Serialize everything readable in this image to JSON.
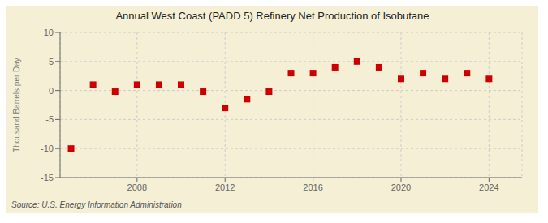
{
  "chart_data": {
    "type": "scatter",
    "title": "Annual West Coast (PADD 5) Refinery Net Production of Isobutane",
    "ylabel": "Thousand Barrels per Day",
    "source": "Source: U.S. Energy Information Administration",
    "x": [
      2005,
      2006,
      2007,
      2008,
      2009,
      2010,
      2011,
      2012,
      2013,
      2014,
      2015,
      2016,
      2017,
      2018,
      2019,
      2020,
      2021,
      2022,
      2023,
      2024
    ],
    "values": [
      -10.0,
      1.0,
      -0.2,
      1.0,
      1.0,
      1.0,
      -0.2,
      -3.0,
      -1.5,
      -0.2,
      3.0,
      3.0,
      4.0,
      5.0,
      4.0,
      2.0,
      3.0,
      2.0,
      3.0,
      2.0
    ],
    "color": "#cc0000",
    "marker": "square",
    "xlim": [
      2004.5,
      2025.5
    ],
    "xticks": [
      2008,
      2012,
      2016,
      2020,
      2024
    ],
    "ylim": [
      -15,
      10
    ],
    "yticks": [
      -15,
      -10,
      -5,
      0,
      5,
      10
    ],
    "grid": true
  }
}
